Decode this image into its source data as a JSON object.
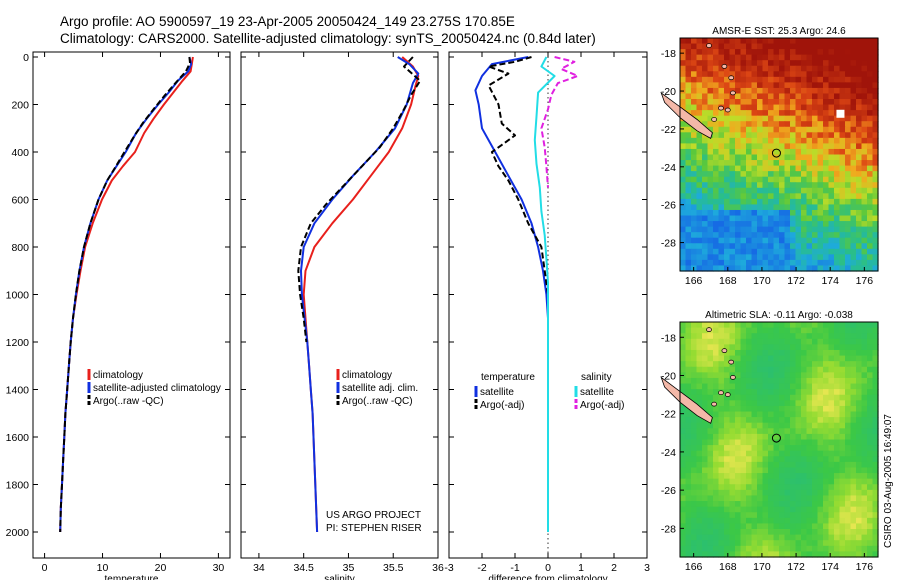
{
  "title_line1": "Argo profile: AO 5900597_19 23-Apr-2005 20050424_149 23.275S 170.85E",
  "title_line2": "Climatology: CARS2000. Satellite-adjusted climatology: synTS_20050424.nc (0.84d later)",
  "side_label": "CSIRO 03-Aug-2005 16:49:07",
  "colors": {
    "climatology": "#e8201c",
    "satellite": "#1030e0",
    "argo": "#000000",
    "salinity": "#22dde6",
    "salinity_argo": "#e020e0",
    "land": "#f4b8a8"
  },
  "chart_data": [
    {
      "type": "line",
      "panel": "temperature",
      "xlabel": "temperature",
      "ylabel": "depth",
      "xlim": [
        -2,
        32
      ],
      "ylim": [
        0,
        2050
      ],
      "xticks": [
        0,
        10,
        20,
        30
      ],
      "yticks": [
        0,
        200,
        400,
        600,
        800,
        1000,
        1200,
        1400,
        1600,
        1800,
        2000
      ],
      "legend": [
        "climatology",
        "satellite-adjusted climatology",
        "Argo(..raw -QC)"
      ],
      "series": [
        {
          "name": "climatology",
          "color": "climatology",
          "dash": false,
          "points": [
            [
              25.6,
              0
            ],
            [
              25.4,
              30
            ],
            [
              25.2,
              60
            ],
            [
              23.8,
              100
            ],
            [
              22.2,
              150
            ],
            [
              20.6,
              200
            ],
            [
              18.8,
              260
            ],
            [
              17.2,
              320
            ],
            [
              15.6,
              400
            ],
            [
              13.5,
              460
            ],
            [
              11.6,
              520
            ],
            [
              9.9,
              600
            ],
            [
              8.3,
              700
            ],
            [
              7.0,
              800
            ],
            [
              6.2,
              900
            ],
            [
              5.5,
              1000
            ],
            [
              4.9,
              1100
            ],
            [
              4.5,
              1200
            ],
            [
              4.2,
              1300
            ],
            [
              3.9,
              1400
            ],
            [
              3.6,
              1500
            ],
            [
              3.4,
              1600
            ],
            [
              3.2,
              1700
            ],
            [
              3.0,
              1800
            ],
            [
              2.8,
              1900
            ],
            [
              2.7,
              2000
            ]
          ]
        },
        {
          "name": "satellite-adjusted climatology",
          "color": "satellite",
          "dash": false,
          "points": [
            [
              25.0,
              0
            ],
            [
              25.3,
              30
            ],
            [
              24.8,
              60
            ],
            [
              23.0,
              100
            ],
            [
              21.4,
              150
            ],
            [
              19.6,
              200
            ],
            [
              17.6,
              260
            ],
            [
              15.8,
              320
            ],
            [
              14.0,
              400
            ],
            [
              12.4,
              460
            ],
            [
              10.8,
              520
            ],
            [
              9.3,
              600
            ],
            [
              7.9,
              700
            ],
            [
              6.8,
              800
            ],
            [
              6.0,
              900
            ],
            [
              5.4,
              1000
            ],
            [
              4.9,
              1100
            ],
            [
              4.5,
              1200
            ],
            [
              4.2,
              1300
            ],
            [
              3.9,
              1400
            ],
            [
              3.6,
              1500
            ],
            [
              3.4,
              1600
            ],
            [
              3.2,
              1700
            ],
            [
              3.0,
              1800
            ],
            [
              2.8,
              1900
            ],
            [
              2.7,
              2000
            ]
          ]
        },
        {
          "name": "Argo(..raw -QC)",
          "color": "argo",
          "dash": true,
          "points": [
            [
              25.0,
              0
            ],
            [
              25.1,
              25
            ],
            [
              24.4,
              60
            ],
            [
              22.6,
              110
            ],
            [
              20.8,
              160
            ],
            [
              18.8,
              220
            ],
            [
              16.9,
              280
            ],
            [
              15.3,
              340
            ],
            [
              13.8,
              400
            ],
            [
              12.3,
              460
            ],
            [
              10.8,
              520
            ],
            [
              9.3,
              600
            ],
            [
              7.9,
              700
            ],
            [
              6.8,
              800
            ],
            [
              6.0,
              900
            ],
            [
              5.4,
              1000
            ],
            [
              4.9,
              1100
            ],
            [
              4.5,
              1200
            ],
            [
              4.2,
              1300
            ],
            [
              3.9,
              1400
            ],
            [
              3.6,
              1500
            ],
            [
              3.4,
              1600
            ],
            [
              3.2,
              1700
            ],
            [
              3.0,
              1800
            ],
            [
              2.8,
              1900
            ],
            [
              2.7,
              2000
            ]
          ]
        }
      ]
    },
    {
      "type": "line",
      "panel": "salinity",
      "xlabel": "salinity",
      "ylabel": "depth",
      "xlim": [
        33.8,
        36.0
      ],
      "ylim": [
        0,
        2050
      ],
      "xticks": [
        34,
        34.5,
        35,
        35.5,
        36
      ],
      "legend": [
        "climatology",
        "satellite adj. clim.",
        "Argo(..raw -QC)"
      ],
      "annotation": [
        "US ARGO PROJECT",
        "PI: STEPHEN RISER"
      ],
      "series": [
        {
          "name": "climatology",
          "color": "climatology",
          "dash": false,
          "points": [
            [
              35.6,
              0
            ],
            [
              35.72,
              40
            ],
            [
              35.78,
              80
            ],
            [
              35.75,
              120
            ],
            [
              35.7,
              200
            ],
            [
              35.6,
              300
            ],
            [
              35.45,
              400
            ],
            [
              35.25,
              500
            ],
            [
              35.05,
              600
            ],
            [
              34.82,
              700
            ],
            [
              34.62,
              800
            ],
            [
              34.52,
              900
            ],
            [
              34.5,
              1000
            ],
            [
              34.52,
              1100
            ],
            [
              34.54,
              1200
            ],
            [
              34.56,
              1300
            ],
            [
              34.58,
              1400
            ],
            [
              34.6,
              1500
            ],
            [
              34.61,
              1600
            ],
            [
              34.62,
              1700
            ],
            [
              34.63,
              1800
            ],
            [
              34.64,
              1900
            ],
            [
              34.65,
              2000
            ]
          ]
        },
        {
          "name": "satellite adj. clim.",
          "color": "satellite",
          "dash": false,
          "points": [
            [
              35.55,
              0
            ],
            [
              35.68,
              30
            ],
            [
              35.78,
              70
            ],
            [
              35.72,
              110
            ],
            [
              35.65,
              200
            ],
            [
              35.52,
              300
            ],
            [
              35.3,
              400
            ],
            [
              35.05,
              500
            ],
            [
              34.82,
              600
            ],
            [
              34.62,
              700
            ],
            [
              34.5,
              800
            ],
            [
              34.47,
              900
            ],
            [
              34.48,
              1000
            ],
            [
              34.51,
              1100
            ],
            [
              34.54,
              1200
            ],
            [
              34.56,
              1300
            ],
            [
              34.58,
              1400
            ],
            [
              34.6,
              1500
            ],
            [
              34.61,
              1600
            ],
            [
              34.62,
              1700
            ],
            [
              34.63,
              1800
            ],
            [
              34.64,
              1900
            ],
            [
              34.65,
              2000
            ]
          ]
        },
        {
          "name": "Argo(..raw -QC)",
          "color": "argo",
          "dash": true,
          "points": [
            [
              35.72,
              0
            ],
            [
              35.62,
              40
            ],
            [
              35.8,
              100
            ],
            [
              35.7,
              160
            ],
            [
              35.62,
              220
            ],
            [
              35.5,
              300
            ],
            [
              35.35,
              380
            ],
            [
              35.15,
              460
            ],
            [
              34.95,
              540
            ],
            [
              34.75,
              620
            ],
            [
              34.58,
              700
            ],
            [
              34.47,
              800
            ],
            [
              34.44,
              900
            ],
            [
              34.46,
              1000
            ],
            [
              34.5,
              1100
            ],
            [
              34.53,
              1200
            ]
          ]
        }
      ]
    },
    {
      "type": "line",
      "panel": "difference",
      "xlabel": "difference from climatology",
      "ylabel": "depth",
      "xlim": [
        -3,
        3
      ],
      "ylim": [
        0,
        2050
      ],
      "xticks": [
        -3,
        -2,
        -1,
        0,
        1,
        2,
        3
      ],
      "legend_left": [
        "temperature",
        "satellite",
        "Argo(-adj)"
      ],
      "legend_right": [
        "salinity",
        "satellite",
        "Argo(-adj)"
      ],
      "series": [
        {
          "name": "temperature satellite",
          "color": "satellite",
          "dash": false,
          "points": [
            [
              -0.6,
              0
            ],
            [
              -1.7,
              30
            ],
            [
              -2.0,
              80
            ],
            [
              -2.2,
              140
            ],
            [
              -2.1,
              200
            ],
            [
              -2.0,
              300
            ],
            [
              -1.6,
              400
            ],
            [
              -1.2,
              500
            ],
            [
              -0.8,
              600
            ],
            [
              -0.5,
              700
            ],
            [
              -0.3,
              800
            ],
            [
              -0.15,
              900
            ],
            [
              -0.05,
              1000
            ],
            [
              0,
              1100
            ],
            [
              0,
              1200
            ],
            [
              0,
              1400
            ],
            [
              0,
              1600
            ],
            [
              0,
              1800
            ],
            [
              0,
              2000
            ]
          ]
        },
        {
          "name": "temperature Argo(-adj)",
          "color": "argo",
          "dash": true,
          "points": [
            [
              -0.5,
              0
            ],
            [
              -1.0,
              20
            ],
            [
              -1.8,
              40
            ],
            [
              -1.2,
              70
            ],
            [
              -1.8,
              120
            ],
            [
              -1.5,
              200
            ],
            [
              -1.4,
              280
            ],
            [
              -1.0,
              330
            ],
            [
              -1.7,
              400
            ],
            [
              -1.5,
              460
            ],
            [
              -1.2,
              520
            ],
            [
              -0.9,
              600
            ],
            [
              -0.6,
              700
            ],
            [
              -0.2,
              800
            ],
            [
              -0.1,
              900
            ],
            [
              0,
              1000
            ],
            [
              0,
              1100
            ],
            [
              0,
              1200
            ]
          ]
        },
        {
          "name": "salinity satellite",
          "color": "salinity",
          "dash": false,
          "points": [
            [
              -0.05,
              0
            ],
            [
              -0.2,
              40
            ],
            [
              0.2,
              80
            ],
            [
              -0.3,
              150
            ],
            [
              -0.35,
              250
            ],
            [
              -0.4,
              350
            ],
            [
              -0.35,
              450
            ],
            [
              -0.25,
              550
            ],
            [
              -0.2,
              650
            ],
            [
              -0.1,
              750
            ],
            [
              -0.05,
              850
            ],
            [
              0,
              950
            ],
            [
              0,
              1100
            ],
            [
              0,
              1400
            ],
            [
              0,
              1700
            ],
            [
              0,
              2000
            ]
          ]
        },
        {
          "name": "salinity Argo(-adj)",
          "color": "salinity_argo",
          "dash": true,
          "points": [
            [
              0.2,
              0
            ],
            [
              0.8,
              20
            ],
            [
              0.4,
              50
            ],
            [
              0.9,
              80
            ],
            [
              0.3,
              110
            ],
            [
              0.1,
              160
            ],
            [
              0.0,
              220
            ],
            [
              -0.2,
              300
            ],
            [
              -0.1,
              380
            ],
            [
              -0.05,
              460
            ],
            [
              0,
              550
            ]
          ]
        }
      ]
    },
    {
      "type": "heatmap",
      "panel": "map1",
      "title": "AMSR-E SST: 25.3 Argo: 24.6",
      "xlim": [
        165.2,
        176.8
      ],
      "ylim": [
        -29.5,
        -17.2
      ],
      "xticks": [
        166,
        168,
        170,
        172,
        174,
        176
      ],
      "yticks": [
        -18,
        -20,
        -22,
        -24,
        -26,
        -28
      ],
      "profile_marker": [
        170.85,
        -23.275
      ]
    },
    {
      "type": "heatmap",
      "panel": "map2",
      "title": "Altimetric SLA: -0.11 Argo: -0.038",
      "xlim": [
        165.2,
        176.8
      ],
      "ylim": [
        -29.5,
        -17.2
      ],
      "xticks": [
        166,
        168,
        170,
        172,
        174,
        176
      ],
      "yticks": [
        -18,
        -20,
        -22,
        -24,
        -26,
        -28
      ],
      "profile_marker": [
        170.85,
        -23.275
      ]
    }
  ]
}
